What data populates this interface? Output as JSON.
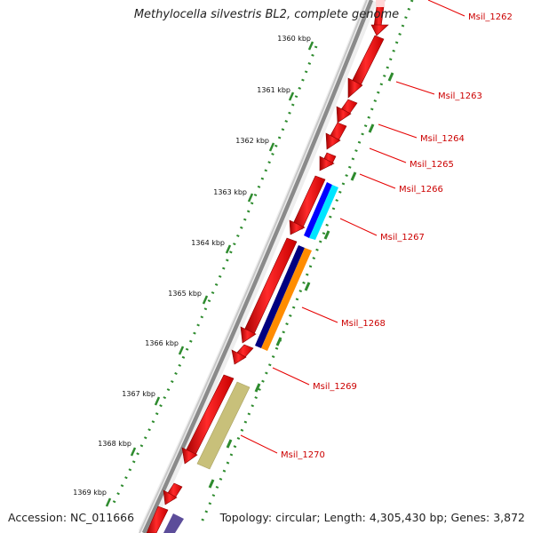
{
  "title": "Methylocella silvestris BL2, complete genome",
  "accession": "Accession: NC_011666",
  "topology": "Topology: circular; Length: 4,305,430 bp; Genes: 3,872",
  "ruler_ticks": [
    {
      "label": "1360 kbp"
    },
    {
      "label": "1361 kbp"
    },
    {
      "label": "1362 kbp"
    },
    {
      "label": "1363 kbp"
    },
    {
      "label": "1364 kbp"
    },
    {
      "label": "1365 kbp"
    },
    {
      "label": "1366 kbp"
    },
    {
      "label": "1367 kbp"
    },
    {
      "label": "1368 kbp"
    },
    {
      "label": "1369 kbp"
    }
  ],
  "gene_labels": [
    "Msil_1262",
    "Msil_1263",
    "Msil_1264",
    "Msil_1265",
    "Msil_1266",
    "Msil_1267",
    "Msil_1268",
    "Msil_1269",
    "Msil_1270"
  ],
  "colors": {
    "gene": "#ff0000",
    "backbone": "#8a8a8a",
    "dots": "#2e8b2e",
    "leader": "#e60000",
    "label": "#cc0000",
    "cog_blue": "#0000ff",
    "cog_cyan": "#00e5ff",
    "cog_navy": "#000080",
    "cog_orange": "#ff8c00",
    "cog_khaki": "#c8c07a",
    "cog_purple": "#5c4d9a"
  }
}
